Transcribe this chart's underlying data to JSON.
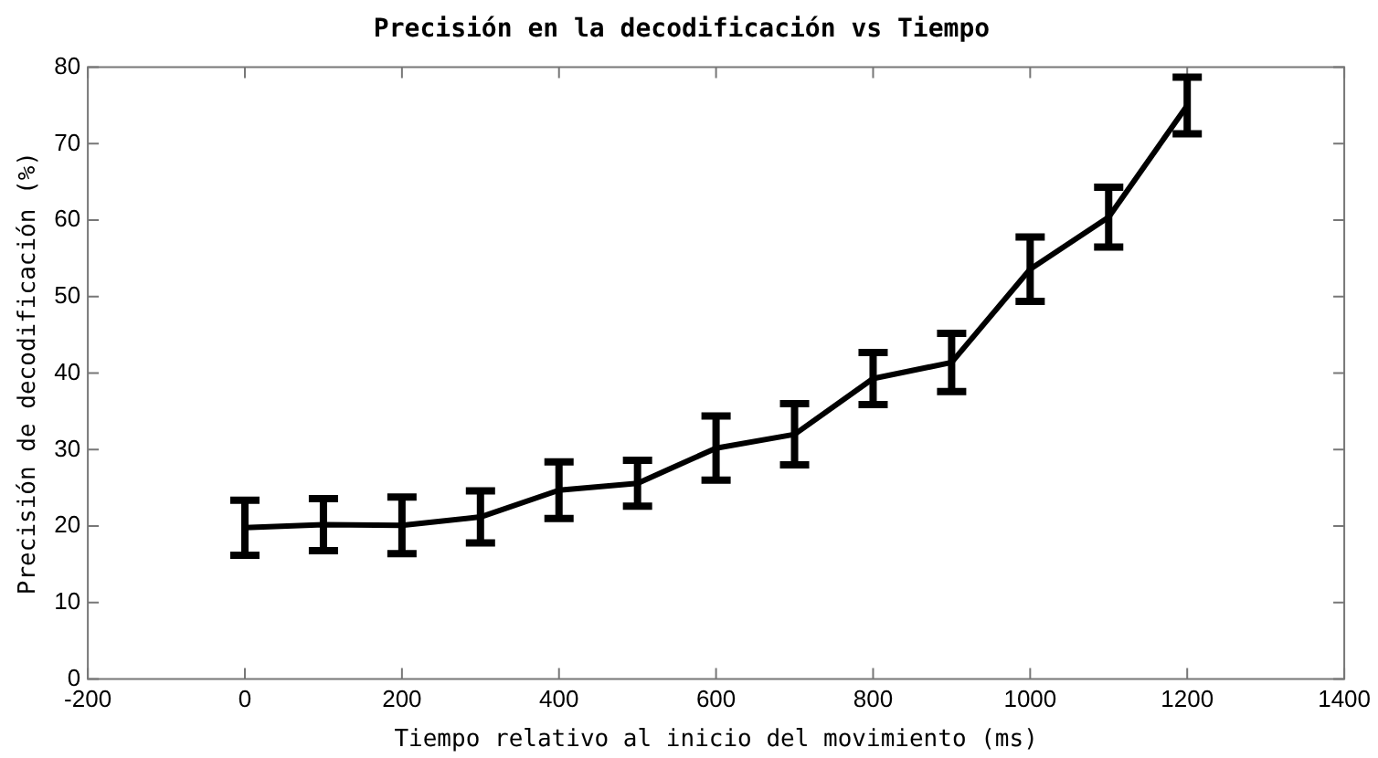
{
  "chart_data": {
    "type": "line",
    "title": "Precisión en la decodificación vs Tiempo",
    "xlabel": "Tiempo relativo al inicio del movimiento (ms)",
    "ylabel": "Precisión de decodificación (%)",
    "x": [
      0,
      100,
      200,
      300,
      400,
      500,
      600,
      700,
      800,
      900,
      1000,
      1100,
      1200
    ],
    "series": [
      {
        "color": "#000000",
        "values": [
          19.8,
          20.2,
          20.1,
          21.2,
          24.7,
          25.6,
          30.2,
          32,
          39.3,
          41.4,
          53.6,
          60.4,
          75
        ],
        "errors": [
          3.6,
          3.4,
          3.7,
          3.4,
          3.7,
          3,
          4.2,
          4,
          3.4,
          3.8,
          4.2,
          3.9,
          3.7
        ]
      }
    ],
    "xlim": [
      -200,
      1400
    ],
    "xticks": [
      -200,
      0,
      200,
      400,
      600,
      800,
      1000,
      1200,
      1400
    ],
    "ylim": [
      0,
      80
    ],
    "yticks": [
      0,
      10,
      20,
      30,
      40,
      50,
      60,
      70,
      80
    ],
    "grid": false,
    "legend": false,
    "marker": "none",
    "line_style": "solid"
  }
}
